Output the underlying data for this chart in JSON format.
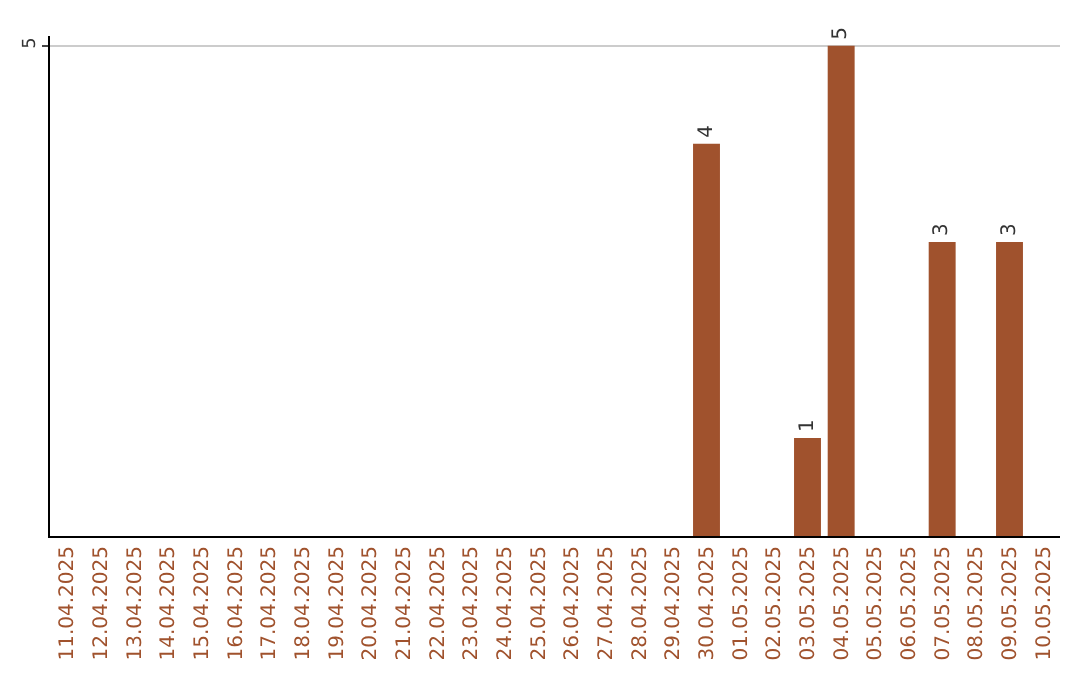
{
  "chart_data": {
    "type": "bar",
    "categories": [
      "11.04.2025",
      "12.04.2025",
      "13.04.2025",
      "14.04.2025",
      "15.04.2025",
      "16.04.2025",
      "17.04.2025",
      "18.04.2025",
      "19.04.2025",
      "20.04.2025",
      "21.04.2025",
      "22.04.2025",
      "23.04.2025",
      "24.04.2025",
      "25.04.2025",
      "26.04.2025",
      "27.04.2025",
      "28.04.2025",
      "29.04.2025",
      "30.04.2025",
      "01.05.2025",
      "02.05.2025",
      "03.05.2025",
      "04.05.2025",
      "05.05.2025",
      "06.05.2025",
      "07.05.2025",
      "08.05.2025",
      "09.05.2025",
      "10.05.2025"
    ],
    "values": [
      null,
      null,
      null,
      null,
      null,
      null,
      null,
      null,
      null,
      null,
      null,
      null,
      null,
      null,
      null,
      null,
      null,
      null,
      null,
      4,
      null,
      null,
      1,
      5,
      null,
      null,
      3,
      null,
      3,
      null
    ],
    "color": "#a0522d",
    "ylim": [
      0,
      5.1
    ],
    "yticks": [
      5
    ],
    "grid": "y",
    "data_labels": true
  }
}
